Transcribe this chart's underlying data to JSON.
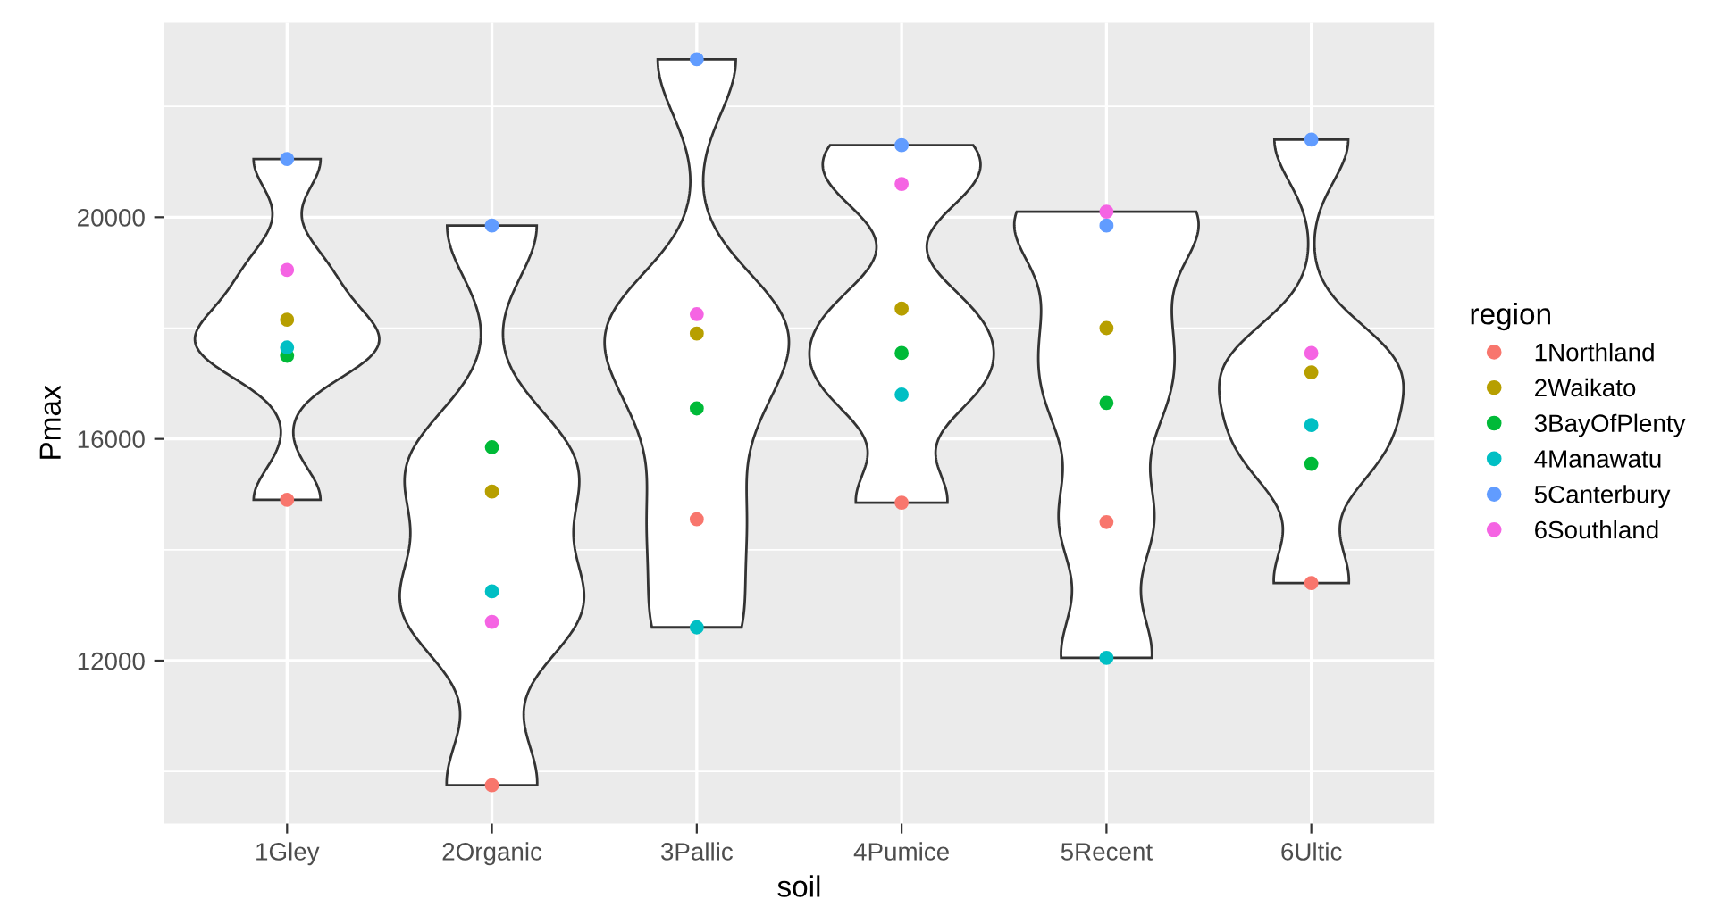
{
  "chart_data": {
    "type": "scatter",
    "xlabel": "soil",
    "ylabel": "Pmax",
    "legend_title": "region",
    "categories": [
      "1Gley",
      "2Organic",
      "3Pallic",
      "4Pumice",
      "5Recent",
      "6Ultic"
    ],
    "series": [
      {
        "name": "1Northland",
        "color": "#f8766d",
        "values": [
          14900,
          9750,
          14550,
          14850,
          14500,
          13400
        ]
      },
      {
        "name": "2Waikato",
        "color": "#b79f00",
        "values": [
          18150,
          15050,
          17900,
          18350,
          18000,
          17200
        ]
      },
      {
        "name": "3BayOfPlenty",
        "color": "#00ba38",
        "values": [
          17500,
          15850,
          16550,
          17550,
          16650,
          15550
        ]
      },
      {
        "name": "4Manawatu",
        "color": "#00bfc4",
        "values": [
          17650,
          13250,
          12600,
          16800,
          12050,
          16250
        ]
      },
      {
        "name": "5Canterbury",
        "color": "#619cff",
        "values": [
          21050,
          19850,
          22850,
          21300,
          19850,
          21400
        ]
      },
      {
        "name": "6Southland",
        "color": "#f564e3",
        "values": [
          19050,
          12700,
          18250,
          20600,
          20100,
          17550
        ]
      }
    ],
    "ylim": [
      9060,
      23510
    ],
    "yticks": [
      12000,
      16000,
      20000
    ],
    "grid": true,
    "legend": "right",
    "marker": "circle"
  }
}
